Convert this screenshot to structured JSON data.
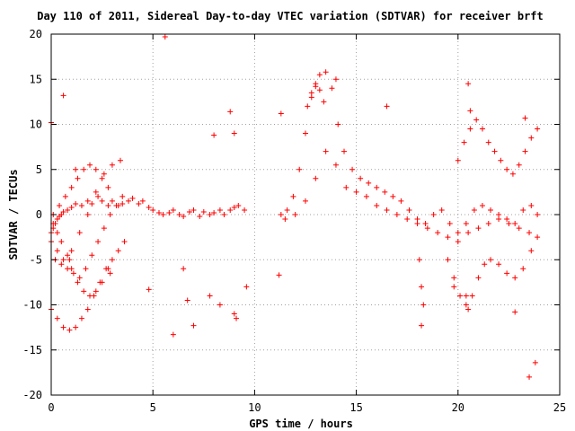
{
  "chart_data": {
    "type": "scatter",
    "title": "Day 110 of 2011, Sidereal Day-to-day VTEC variation (SDTVAR) for receiver brft",
    "xlabel": "GPS time / hours",
    "ylabel": "SDTVAR / TECUs",
    "xlim": [
      0,
      25
    ],
    "ylim": [
      -20,
      20
    ],
    "x_ticks": [
      "0",
      "5",
      "10",
      "15",
      "20",
      "25"
    ],
    "y_ticks": [
      "20",
      "15",
      "10",
      "5",
      "0",
      "-5",
      "-10",
      "-15",
      "-20"
    ],
    "marker": "+",
    "color": "#ff0000",
    "grid": true,
    "series": [
      {
        "x": [
          0.0,
          0.1,
          0.2,
          0.3,
          0.4,
          0.5,
          0.6,
          0.8,
          1.0,
          1.2,
          1.5,
          1.8,
          2.0,
          2.3,
          2.5,
          2.8,
          3.0,
          3.3,
          3.5,
          3.8,
          4.0,
          4.3,
          4.5,
          4.8,
          5.0,
          5.3,
          5.5,
          5.8,
          6.0,
          6.3,
          6.5,
          6.8,
          7.0,
          7.3,
          7.5,
          7.8,
          8.0,
          8.3,
          8.5,
          8.8,
          9.0,
          9.2,
          9.5,
          0.1,
          0.3,
          0.5,
          0.8,
          1.0,
          1.3,
          1.6,
          1.9,
          2.2,
          2.5,
          2.8,
          0.0,
          0.3,
          0.6,
          0.9,
          1.2,
          1.5,
          1.8,
          2.1,
          2.4,
          2.7,
          3.0,
          3.3,
          3.6,
          0.2,
          0.5,
          0.8,
          1.1,
          1.4,
          1.7,
          2.0,
          2.3,
          2.6,
          2.9,
          3.2,
          3.5,
          0.1,
          0.4,
          0.7,
          1.0,
          1.3,
          1.6,
          1.9,
          2.2,
          2.5,
          2.8,
          0.0,
          0.3,
          0.6,
          1.0,
          1.4,
          1.8,
          2.2,
          2.6,
          3.0,
          11.3,
          11.6,
          11.9,
          12.2,
          12.5,
          12.8,
          13.0,
          13.2,
          13.5,
          13.8,
          14.1,
          14.4,
          14.8,
          15.2,
          15.6,
          16.0,
          16.4,
          16.8,
          17.2,
          17.6,
          18.0,
          18.4,
          18.8,
          19.2,
          19.6,
          20.0,
          20.4,
          20.8,
          21.2,
          21.6,
          22.0,
          22.4,
          22.8,
          23.2,
          23.6,
          23.9,
          11.5,
          12.0,
          12.5,
          13.0,
          13.5,
          14.0,
          14.5,
          15.0,
          15.5,
          16.0,
          16.5,
          17.0,
          17.5,
          18.0,
          18.5,
          19.0,
          19.5,
          20.0,
          20.5,
          21.0,
          21.5,
          22.0,
          22.5,
          23.0,
          23.5,
          23.9,
          12.6,
          12.8,
          13.0,
          13.2,
          13.4,
          19.5,
          19.8,
          20.1,
          20.4,
          20.7,
          21.0,
          21.3,
          21.6,
          22.0,
          22.4,
          22.8,
          23.2,
          23.6,
          20.0,
          20.3,
          20.6,
          20.9,
          21.2,
          21.5,
          21.8,
          22.1,
          22.4,
          22.7,
          23.0,
          23.3,
          23.6,
          23.9,
          18.1,
          18.2,
          18.3,
          20.4,
          20.5,
          19.8,
          0.0,
          0.6,
          1.2,
          5.6,
          6.0,
          6.7,
          7.0,
          8.3,
          8.8,
          9.1,
          9.6,
          11.3,
          11.2,
          14.0,
          16.5,
          23.3,
          23.5,
          23.8,
          20.5,
          20.6,
          18.2,
          22.8,
          0.9,
          3.4,
          9.0,
          7.8,
          6.5,
          4.8,
          2.9,
          8.0,
          9.0
        ],
        "y": [
          -2.0,
          -1.5,
          -1.0,
          -0.5,
          -0.2,
          0.0,
          0.3,
          0.5,
          0.8,
          1.2,
          1.0,
          1.5,
          1.2,
          2.0,
          1.5,
          1.0,
          1.5,
          1.0,
          1.2,
          1.5,
          1.8,
          1.2,
          1.5,
          0.8,
          0.5,
          0.2,
          0.0,
          0.2,
          0.5,
          0.0,
          -0.2,
          0.3,
          0.5,
          -0.2,
          0.3,
          0.0,
          0.2,
          0.5,
          0.0,
          0.5,
          0.8,
          1.0,
          0.5,
          -1.0,
          -2.0,
          -3.0,
          -4.5,
          -6.0,
          -7.5,
          -8.5,
          -9.0,
          -8.5,
          -7.5,
          -6.0,
          -10.5,
          -11.5,
          -12.5,
          -12.8,
          -12.5,
          -11.5,
          -10.5,
          -9.0,
          -7.5,
          -6.0,
          -5.0,
          -4.0,
          -3.0,
          -5.0,
          -5.5,
          -6.0,
          -6.5,
          -7.0,
          -6.0,
          -4.5,
          -3.0,
          -1.5,
          0.0,
          1.0,
          2.0,
          0.0,
          1.0,
          2.0,
          3.0,
          4.0,
          5.0,
          5.5,
          5.0,
          4.0,
          3.0,
          -3.0,
          -4.0,
          -5.0,
          -4.0,
          -2.0,
          0.0,
          2.5,
          4.5,
          5.5,
          0.0,
          0.5,
          2.0,
          5.0,
          9.0,
          13.0,
          14.5,
          15.5,
          15.8,
          14.0,
          10.0,
          7.0,
          5.0,
          4.0,
          3.5,
          3.0,
          2.5,
          2.0,
          1.5,
          0.5,
          -0.5,
          -1.0,
          0.0,
          0.5,
          -1.0,
          -2.0,
          -1.0,
          0.5,
          1.0,
          0.5,
          0.0,
          -0.5,
          -1.0,
          0.5,
          1.0,
          0.0,
          -0.5,
          0.0,
          1.5,
          4.0,
          7.0,
          5.5,
          3.0,
          2.5,
          2.0,
          1.0,
          0.5,
          0.0,
          -0.5,
          -1.0,
          -1.5,
          -2.0,
          -2.5,
          -3.0,
          -2.0,
          -1.5,
          -1.0,
          -0.5,
          -1.0,
          -1.5,
          -2.0,
          -2.5,
          12.0,
          13.5,
          14.2,
          13.8,
          12.5,
          -5.0,
          -7.0,
          -9.0,
          -10.0,
          -9.0,
          -7.0,
          -5.5,
          -5.0,
          -5.5,
          -6.5,
          -7.0,
          -6.0,
          -4.0,
          6.0,
          8.0,
          9.5,
          10.5,
          9.5,
          8.0,
          7.0,
          6.0,
          5.0,
          4.5,
          5.5,
          7.0,
          8.5,
          9.5,
          -5.0,
          -8.0,
          -10.0,
          -9.0,
          -10.5,
          -8.0,
          10.2,
          13.2,
          5.0,
          19.7,
          -13.3,
          -9.5,
          -12.3,
          -10.0,
          11.4,
          -11.5,
          -8.0,
          11.2,
          -6.7,
          15.0,
          12.0,
          10.7,
          -18.0,
          -16.4,
          14.5,
          11.5,
          -12.3,
          -10.8,
          -5.0,
          6.0,
          9.0,
          -9.0,
          -6.0,
          -8.3,
          -6.5,
          8.8,
          -11.0
        ]
      }
    ]
  }
}
